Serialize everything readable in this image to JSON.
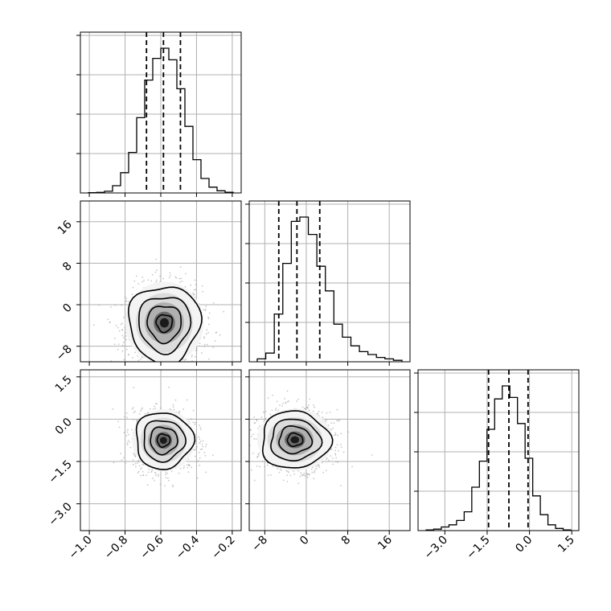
{
  "chart_data": {
    "type": "corner",
    "parameters": [
      {
        "id": "p0",
        "range": [
          -1.05,
          -0.15
        ],
        "ticks": [
          -1.0,
          -0.8,
          -0.6,
          -0.4,
          -0.2
        ],
        "tick_labels": [
          "−1.0",
          "−0.8",
          "−0.6",
          "−0.4",
          "−0.2"
        ],
        "quantiles": [
          -0.68,
          -0.585,
          -0.49
        ],
        "histogram": [
          0.002,
          0.004,
          0.012,
          0.05,
          0.14,
          0.28,
          0.52,
          0.78,
          0.93,
          1.0,
          0.92,
          0.72,
          0.46,
          0.23,
          0.1,
          0.04,
          0.015,
          0.005
        ]
      },
      {
        "id": "p1",
        "range": [
          -11,
          20
        ],
        "ticks": [
          -8,
          0,
          8,
          16
        ],
        "tick_labels": [
          "−8",
          "0",
          "8",
          "16"
        ],
        "quantiles": [
          -5.3,
          -1.8,
          2.6
        ],
        "histogram": [
          0.02,
          0.06,
          0.33,
          0.68,
          0.97,
          1.0,
          0.88,
          0.66,
          0.49,
          0.26,
          0.17,
          0.11,
          0.07,
          0.05,
          0.03,
          0.02,
          0.01
        ]
      },
      {
        "id": "p2",
        "range": [
          -3.95,
          1.75
        ],
        "ticks": [
          -3.0,
          -1.5,
          0.0,
          1.5
        ],
        "tick_labels": [
          "−3.0",
          "−1.5",
          "0.0",
          "1.5"
        ],
        "quantiles": [
          -1.45,
          -0.73,
          -0.05
        ],
        "histogram": [
          0.005,
          0.01,
          0.025,
          0.04,
          0.07,
          0.13,
          0.3,
          0.48,
          0.7,
          0.91,
          1.0,
          0.92,
          0.74,
          0.5,
          0.24,
          0.11,
          0.04,
          0.015,
          0.005
        ]
      }
    ],
    "pairs": [
      {
        "x": "p0",
        "y": "p1",
        "center": [
          -0.58,
          -3.5
        ],
        "spread": [
          0.1,
          3.6
        ],
        "skew": 0.25
      },
      {
        "x": "p0",
        "y": "p2",
        "center": [
          -0.585,
          -0.75
        ],
        "spread": [
          0.08,
          0.5
        ],
        "skew": 0.0
      },
      {
        "x": "p1",
        "y": "p2",
        "center": [
          -2.2,
          -0.73
        ],
        "spread": [
          3.3,
          0.5
        ],
        "skew": 0.1
      }
    ],
    "contour_levels": [
      "0.5-sigma",
      "1-sigma",
      "1.5-sigma",
      "2-sigma"
    ],
    "grid": true,
    "title": "",
    "xlabel": "",
    "ylabel": ""
  }
}
